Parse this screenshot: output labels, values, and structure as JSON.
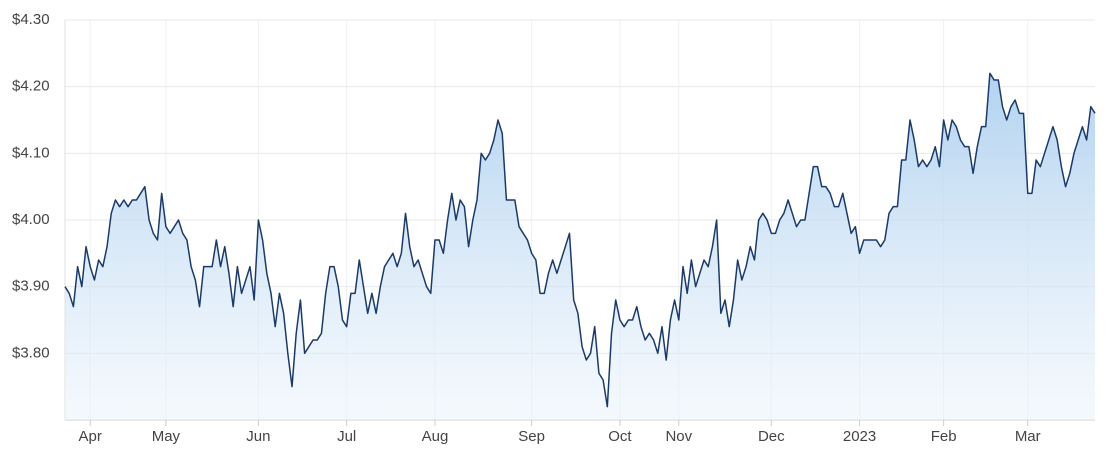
{
  "chart_data": {
    "type": "area-line",
    "categories": [
      null,
      null,
      null,
      null,
      null,
      null,
      "Apr",
      null,
      null,
      null,
      null,
      null,
      null,
      null,
      null,
      null,
      null,
      null,
      null,
      null,
      null,
      null,
      null,
      null,
      "May",
      null,
      null,
      null,
      null,
      null,
      null,
      null,
      null,
      null,
      null,
      null,
      null,
      null,
      null,
      null,
      null,
      null,
      null,
      null,
      null,
      null,
      "Jun",
      null,
      null,
      null,
      null,
      null,
      null,
      null,
      null,
      null,
      null,
      null,
      null,
      null,
      null,
      null,
      null,
      null,
      null,
      null,
      null,
      "Jul",
      null,
      null,
      null,
      null,
      null,
      null,
      null,
      null,
      null,
      null,
      null,
      null,
      null,
      null,
      null,
      null,
      null,
      null,
      null,
      null,
      "Aug",
      null,
      null,
      null,
      null,
      null,
      null,
      null,
      null,
      null,
      null,
      null,
      null,
      null,
      null,
      null,
      null,
      null,
      null,
      null,
      null,
      null,
      null,
      "Sep",
      null,
      null,
      null,
      null,
      null,
      null,
      null,
      null,
      null,
      null,
      null,
      null,
      null,
      null,
      null,
      null,
      null,
      null,
      null,
      null,
      "Oct",
      null,
      null,
      null,
      null,
      null,
      null,
      null,
      null,
      null,
      null,
      null,
      null,
      null,
      "Nov",
      null,
      null,
      null,
      null,
      null,
      null,
      null,
      null,
      null,
      null,
      null,
      null,
      null,
      null,
      null,
      null,
      null,
      null,
      null,
      null,
      null,
      "Dec",
      null,
      null,
      null,
      null,
      null,
      null,
      null,
      null,
      null,
      null,
      null,
      null,
      null,
      null,
      null,
      null,
      null,
      null,
      null,
      null,
      "2023",
      null,
      null,
      null,
      null,
      null,
      null,
      null,
      null,
      null,
      null,
      null,
      null,
      null,
      null,
      null,
      null,
      null,
      null,
      null,
      "Feb",
      null,
      null,
      null,
      null,
      null,
      null,
      null,
      null,
      null,
      null,
      null,
      null,
      null,
      null,
      null,
      null,
      null,
      null,
      null,
      "Mar",
      null,
      null,
      null,
      null,
      null,
      null,
      null,
      null,
      null,
      null,
      null,
      null,
      null,
      null,
      null,
      null
    ],
    "values": [
      3.9,
      3.89,
      3.87,
      3.93,
      3.9,
      3.96,
      3.93,
      3.91,
      3.94,
      3.93,
      3.96,
      4.01,
      4.03,
      4.02,
      4.03,
      4.02,
      4.03,
      4.03,
      4.04,
      4.05,
      4.0,
      3.98,
      3.97,
      4.04,
      3.99,
      3.98,
      3.99,
      4.0,
      3.98,
      3.97,
      3.93,
      3.91,
      3.87,
      3.93,
      3.93,
      3.93,
      3.97,
      3.93,
      3.96,
      3.92,
      3.87,
      3.93,
      3.89,
      3.91,
      3.93,
      3.88,
      4.0,
      3.97,
      3.92,
      3.89,
      3.84,
      3.89,
      3.86,
      3.8,
      3.75,
      3.83,
      3.88,
      3.8,
      3.81,
      3.82,
      3.82,
      3.83,
      3.89,
      3.93,
      3.93,
      3.9,
      3.85,
      3.84,
      3.89,
      3.89,
      3.94,
      3.9,
      3.86,
      3.89,
      3.86,
      3.9,
      3.93,
      3.94,
      3.95,
      3.93,
      3.95,
      4.01,
      3.96,
      3.93,
      3.94,
      3.92,
      3.9,
      3.89,
      3.97,
      3.97,
      3.95,
      4.0,
      4.04,
      4.0,
      4.03,
      4.02,
      3.96,
      4.0,
      4.03,
      4.1,
      4.09,
      4.1,
      4.12,
      4.15,
      4.13,
      4.03,
      4.03,
      4.03,
      3.99,
      3.98,
      3.97,
      3.95,
      3.94,
      3.89,
      3.89,
      3.92,
      3.94,
      3.92,
      3.94,
      3.96,
      3.98,
      3.88,
      3.86,
      3.81,
      3.79,
      3.8,
      3.84,
      3.77,
      3.76,
      3.72,
      3.83,
      3.88,
      3.85,
      3.84,
      3.85,
      3.85,
      3.87,
      3.84,
      3.82,
      3.83,
      3.82,
      3.8,
      3.84,
      3.79,
      3.85,
      3.88,
      3.85,
      3.93,
      3.89,
      3.94,
      3.9,
      3.92,
      3.94,
      3.93,
      3.96,
      4.0,
      3.86,
      3.88,
      3.84,
      3.88,
      3.94,
      3.91,
      3.93,
      3.96,
      3.94,
      4.0,
      4.01,
      4.0,
      3.98,
      3.98,
      4.0,
      4.01,
      4.03,
      4.01,
      3.99,
      4.0,
      4.0,
      4.04,
      4.08,
      4.08,
      4.05,
      4.05,
      4.04,
      4.02,
      4.02,
      4.04,
      4.01,
      3.98,
      3.99,
      3.95,
      3.97,
      3.97,
      3.97,
      3.97,
      3.96,
      3.97,
      4.01,
      4.02,
      4.02,
      4.09,
      4.09,
      4.15,
      4.12,
      4.08,
      4.09,
      4.08,
      4.09,
      4.11,
      4.08,
      4.15,
      4.12,
      4.15,
      4.14,
      4.12,
      4.11,
      4.11,
      4.07,
      4.11,
      4.14,
      4.14,
      4.22,
      4.21,
      4.21,
      4.17,
      4.15,
      4.17,
      4.18,
      4.16,
      4.16,
      4.04,
      4.04,
      4.09,
      4.08,
      4.1,
      4.12,
      4.14,
      4.12,
      4.08,
      4.05,
      4.07,
      4.1,
      4.12,
      4.14,
      4.12,
      4.17,
      4.16
    ],
    "color": "#1a3a6b",
    "ylim": [
      3.7,
      4.3
    ],
    "yticks": [
      {
        "value": 3.8,
        "label": "$3.80"
      },
      {
        "value": 3.9,
        "label": "$3.90"
      },
      {
        "value": 4.0,
        "label": "$4.00"
      },
      {
        "value": 4.1,
        "label": "$4.10"
      },
      {
        "value": 4.2,
        "label": "$4.20"
      },
      {
        "value": 4.3,
        "label": "$4.30"
      }
    ],
    "grid": true
  }
}
